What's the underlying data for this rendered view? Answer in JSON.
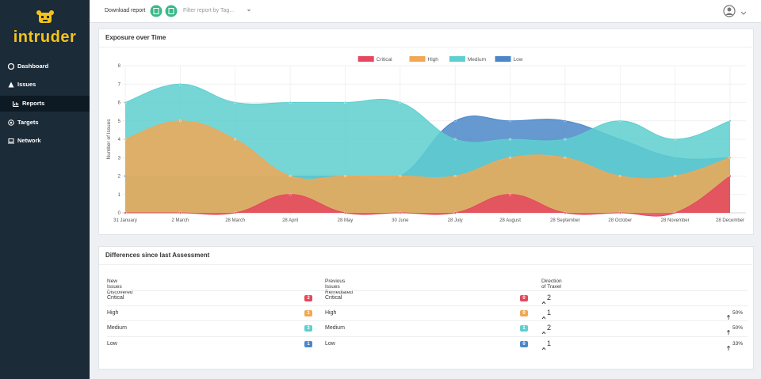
{
  "sidebar": {
    "logo": "intruder",
    "nav": [
      "Dashboard",
      "Issues",
      "Reports",
      "Targets",
      "Network"
    ]
  },
  "topbar": {
    "download": "Download report",
    "filter": "Filter report by Tag..."
  },
  "chart_data": {
    "type": "area",
    "title": "Exposure over Time",
    "y_label": "Number of Issues",
    "categories": [
      "31 January",
      "2 March",
      "28 March",
      "28 April",
      "28 May",
      "30 June",
      "28 July",
      "28 August",
      "28 September",
      "28 October",
      "28 November",
      "28 December"
    ],
    "series": [
      {
        "name": "Critical",
        "color": "#e5475e",
        "values": [
          0,
          0,
          0,
          1,
          0,
          0,
          0,
          1,
          0,
          0,
          0,
          2
        ]
      },
      {
        "name": "High",
        "color": "#f0a855",
        "values": [
          4,
          5,
          4,
          2,
          2,
          2,
          2,
          3,
          3,
          2,
          2,
          3
        ]
      },
      {
        "name": "Medium",
        "color": "#5ecfcf",
        "values": [
          6,
          7,
          6,
          6,
          6,
          6,
          4,
          4,
          4,
          5,
          4,
          5
        ]
      },
      {
        "name": "Low",
        "color": "#4b87c8",
        "values": [
          2,
          2,
          2,
          2,
          2,
          2,
          5,
          5,
          5,
          4,
          3,
          3
        ]
      }
    ],
    "ylim": [
      0,
      8
    ],
    "yticks": [
      0,
      1,
      2,
      3,
      4,
      5,
      6,
      7,
      8
    ],
    "grid": true,
    "legend": "top"
  },
  "differences": {
    "title": "Differences since last Assessment",
    "headers": [
      "New Issues Discovered",
      "Previous Issues Remediated",
      "Direction of Travel"
    ],
    "rows": [
      {
        "severity": "Critical",
        "new": "2",
        "remediated": "0",
        "direction": "2"
      },
      {
        "severity": "High",
        "new": "1",
        "remediated": "0",
        "direction": "1",
        "percent": "50%"
      },
      {
        "severity": "Medium",
        "new": "3",
        "remediated": "1",
        "direction": "2",
        "percent": "50%"
      },
      {
        "severity": "Low",
        "new": "1",
        "remediated": "0",
        "direction": "1",
        "percent": "33%"
      }
    ]
  }
}
